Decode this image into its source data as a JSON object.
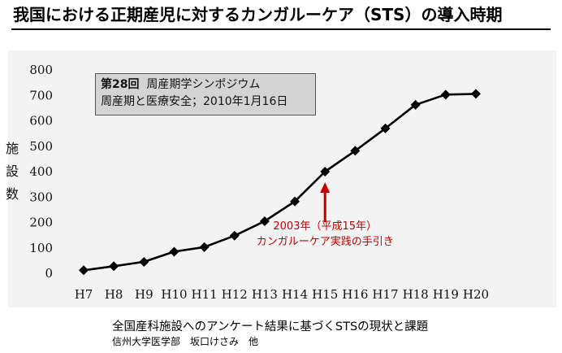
{
  "header": {
    "title": "我国における正期産児に対するカンガルーケア（STS）の導入時期"
  },
  "infobox": {
    "line1_bold": "第28回",
    "line1_rest": "周産期学シンポジウム",
    "line2": "周産期と医療安全；2010年1月16日"
  },
  "footer": {
    "source_line1": "全国産科施設へのアンケート結果に基づくSTSの現状と課題",
    "source_line2": "信州大学医学部　坂口けさみ　他"
  },
  "chart_data": {
    "type": "line",
    "categories": [
      "H7",
      "H8",
      "H9",
      "H10",
      "H11",
      "H12",
      "H13",
      "H14",
      "H15",
      "H16",
      "H17",
      "H18",
      "H19",
      "H20"
    ],
    "series": [
      {
        "values": [
          12,
          28,
          45,
          85,
          103,
          148,
          205,
          283,
          400,
          482,
          570,
          663,
          703,
          706
        ]
      }
    ],
    "ylabel_chars": [
      "施",
      "設",
      "数"
    ],
    "ylim": [
      0,
      800
    ],
    "yticks": [
      0,
      100,
      200,
      300,
      400,
      500,
      600,
      700,
      800
    ],
    "grid": false,
    "marker": "diamond",
    "line_color": "#000000",
    "annotation": {
      "target_category": "H15",
      "line1": "2003年（平成15年）",
      "line2": "カンガルーケア実践の手引き",
      "color": "#c00000"
    }
  }
}
